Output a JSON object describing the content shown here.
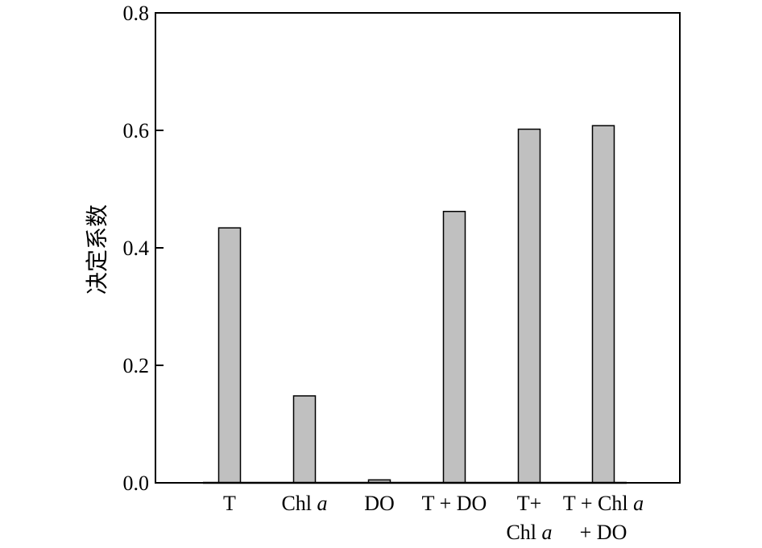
{
  "chart_data": {
    "type": "bar",
    "categories": [
      [
        "T"
      ],
      [
        "Chl a"
      ],
      [
        "DO"
      ],
      [
        "T + DO"
      ],
      [
        "T+",
        "Chl a"
      ],
      [
        "T + Chl a",
        "+ DO"
      ]
    ],
    "values": [
      0.434,
      0.148,
      0.005,
      0.462,
      0.602,
      0.608
    ],
    "title": "",
    "xlabel": "",
    "ylabel": "决定系数",
    "ylim": [
      0,
      0.8
    ],
    "yticks": [
      0.0,
      0.2,
      0.4,
      0.6,
      0.8
    ],
    "ytick_labels": [
      "0.0",
      "0.2",
      "0.4",
      "0.6",
      "0.8"
    ],
    "grid": false,
    "legend": "none",
    "bar_color": "#c0c0c0",
    "edge_color": "#000000"
  }
}
